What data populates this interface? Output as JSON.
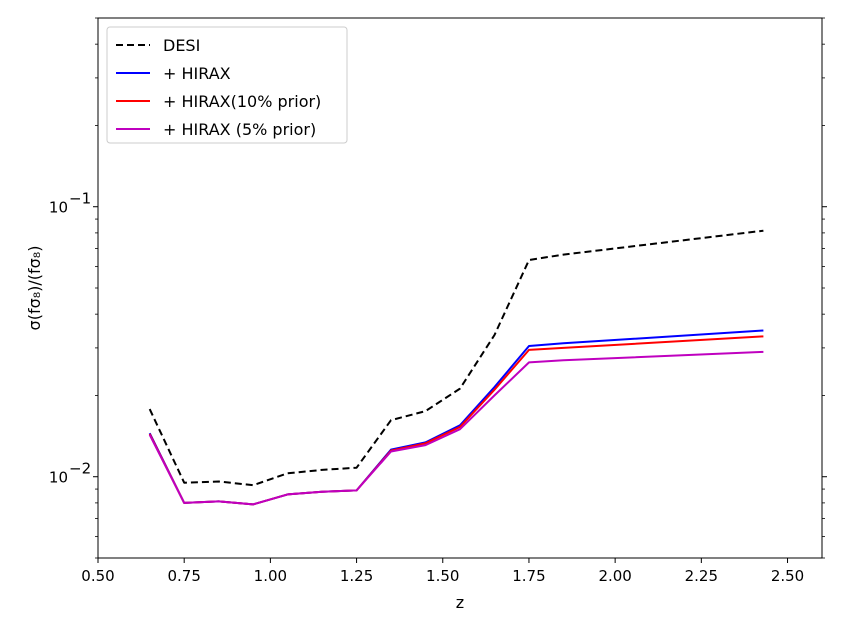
{
  "chart_data": {
    "type": "line",
    "xlabel": "z",
    "ylabel": "σ(fσ₈)/(fσ₈)",
    "xlim": [
      0.5,
      2.6
    ],
    "ylim": [
      0.005,
      0.5
    ],
    "yscale": "log",
    "grid": false,
    "legend_position": "top-left",
    "x_ticks": [
      0.5,
      0.75,
      1.0,
      1.25,
      1.5,
      1.75,
      2.0,
      2.25,
      2.5
    ],
    "x_tick_labels": [
      "0.50",
      "0.75",
      "1.00",
      "1.25",
      "1.50",
      "1.75",
      "2.00",
      "2.25",
      "2.50"
    ],
    "y_major_ticks": [
      {
        "value": 0.01,
        "base": "10",
        "exp": "−2"
      },
      {
        "value": 0.1,
        "base": "10",
        "exp": "−1"
      }
    ],
    "series": [
      {
        "name": "DESI",
        "color": "#000000",
        "dashed": true,
        "x": [
          0.65,
          0.75,
          0.85,
          0.95,
          1.05,
          1.15,
          1.25,
          1.35,
          1.45,
          1.55,
          1.65,
          1.75,
          1.85,
          2.43
        ],
        "values": [
          0.0178,
          0.0095,
          0.0096,
          0.0093,
          0.0103,
          0.0106,
          0.0108,
          0.0162,
          0.0175,
          0.0212,
          0.0335,
          0.0635,
          0.0665,
          0.0815
        ]
      },
      {
        "name": "+ HIRAX",
        "color": "#0000ff",
        "dashed": false,
        "x": [
          0.65,
          0.75,
          0.85,
          0.95,
          1.05,
          1.15,
          1.25,
          1.35,
          1.45,
          1.55,
          1.65,
          1.75,
          1.85,
          2.43
        ],
        "values": [
          0.0145,
          0.008,
          0.0081,
          0.0079,
          0.0086,
          0.0088,
          0.0089,
          0.0126,
          0.0134,
          0.0155,
          0.0215,
          0.0305,
          0.0312,
          0.0348
        ]
      },
      {
        "name": "+ HIRAX(10% prior)",
        "color": "#ff0000",
        "dashed": false,
        "x": [
          0.65,
          0.75,
          0.85,
          0.95,
          1.05,
          1.15,
          1.25,
          1.35,
          1.45,
          1.55,
          1.65,
          1.75,
          1.85,
          2.43
        ],
        "values": [
          0.0144,
          0.008,
          0.0081,
          0.0079,
          0.0086,
          0.0088,
          0.0089,
          0.0125,
          0.0133,
          0.0153,
          0.021,
          0.0295,
          0.03,
          0.0331
        ]
      },
      {
        "name": "+ HIRAX (5% prior)",
        "color": "#bf00bf",
        "dashed": false,
        "x": [
          0.65,
          0.75,
          0.85,
          0.95,
          1.05,
          1.15,
          1.25,
          1.35,
          1.45,
          1.55,
          1.65,
          1.75,
          1.85,
          2.43
        ],
        "values": [
          0.0143,
          0.008,
          0.0081,
          0.0079,
          0.0086,
          0.0088,
          0.0089,
          0.0124,
          0.0131,
          0.015,
          0.02,
          0.0265,
          0.027,
          0.029
        ]
      }
    ]
  }
}
